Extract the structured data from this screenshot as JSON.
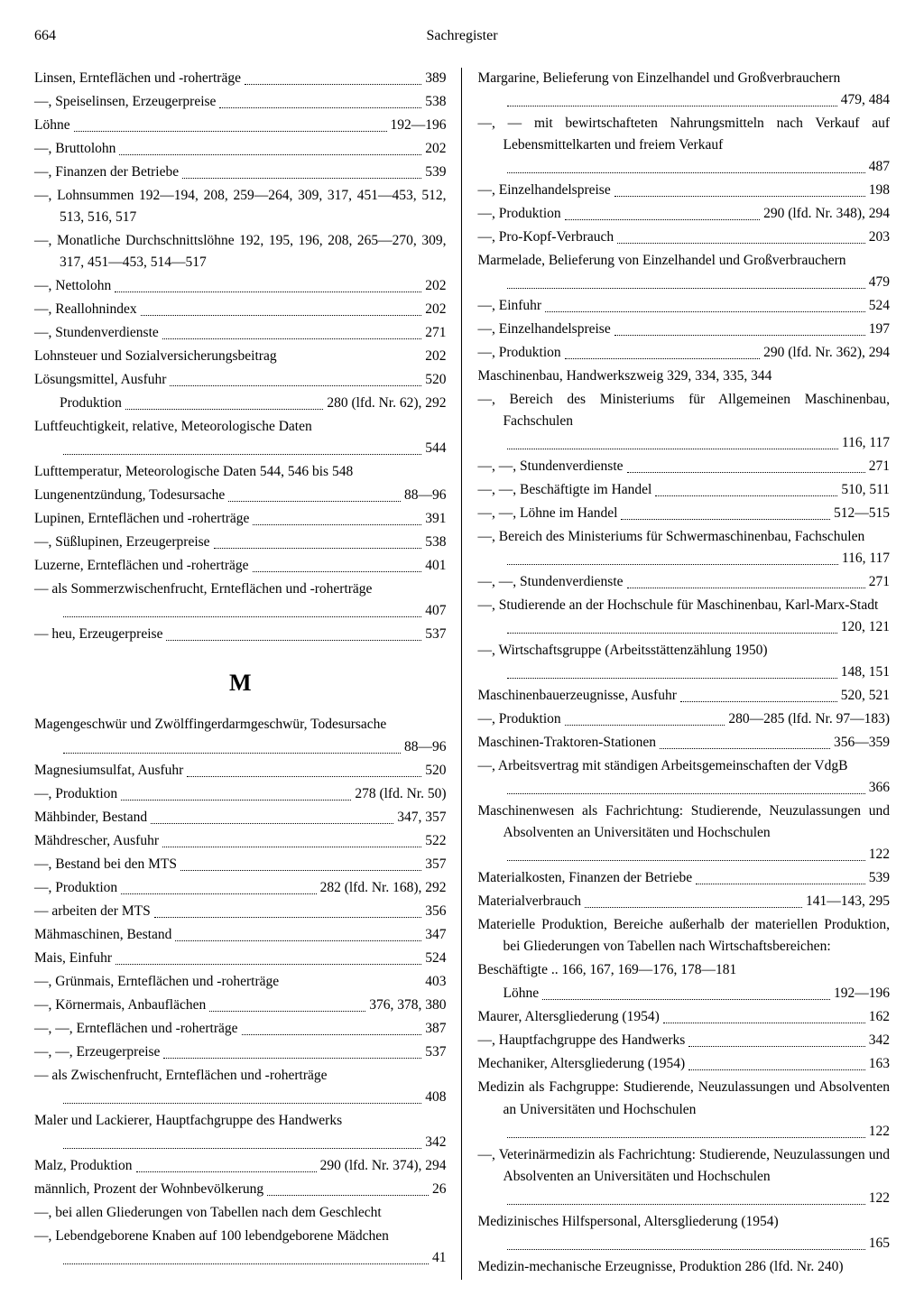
{
  "page_number": "664",
  "running_head": "Sachregister",
  "left_col": [
    {
      "t": "Linsen, Ernteflächen und -roherträge",
      "d": true,
      "p": "389"
    },
    {
      "t": "—, Speiselinsen, Erzeugerpreise",
      "d": true,
      "p": "538"
    },
    {
      "t": "Löhne",
      "d": true,
      "p": "192—196"
    },
    {
      "t": "—, Bruttolohn",
      "d": true,
      "p": "202"
    },
    {
      "t": "—, Finanzen der Betriebe",
      "d": true,
      "p": "539"
    },
    {
      "t": "—, Lohnsummen 192—194, 208, 259—264, 309, 317, 451—453, 512, 513, 516, 517",
      "full": true,
      "indent": 1
    },
    {
      "t": "—, Monatliche Durchschnittslöhne 192, 195, 196, 208, 265—270, 309, 317, 451—453, 514—517",
      "full": true,
      "indent": 1
    },
    {
      "t": "—, Nettolohn",
      "d": true,
      "p": "202"
    },
    {
      "t": "—, Reallohnindex",
      "d": true,
      "p": "202"
    },
    {
      "t": "—, Stundenverdienste",
      "d": true,
      "p": "271"
    },
    {
      "t": "Lohnsteuer und Sozialversicherungsbeitrag",
      "d": false,
      "p": "202"
    },
    {
      "t": "Lösungsmittel, Ausfuhr",
      "d": true,
      "p": "520"
    },
    {
      "t": "Produktion",
      "d": true,
      "p": "280 (lfd. Nr. 62), 292",
      "indent": 1
    },
    {
      "t": "Luftfeuchtigkeit, relative, Meteorologische Daten",
      "d": true,
      "p": "544",
      "wrap": true
    },
    {
      "t": "Lufttemperatur, Meteorologische Daten   544, 546 bis 548",
      "full": true,
      "indent": 1
    },
    {
      "t": "Lungenentzündung, Todesursache",
      "d": true,
      "p": "88—96"
    },
    {
      "t": "Lupinen, Ernteflächen und -roherträge",
      "d": true,
      "p": "391"
    },
    {
      "t": "—, Süßlupinen, Erzeugerpreise",
      "d": true,
      "p": "538"
    },
    {
      "t": "Luzerne, Ernteflächen und -roherträge",
      "d": true,
      "p": "401"
    },
    {
      "t": "— als Sommerzwischenfrucht, Ernteflächen und -roherträge",
      "d": true,
      "p": "407",
      "wrap": true
    },
    {
      "t": "— heu, Erzeugerpreise",
      "d": true,
      "p": "537"
    },
    {
      "section": "M"
    },
    {
      "t": "Magengeschwür und Zwölffingerdarmgeschwür, Todesursache",
      "d": true,
      "p": "88—96",
      "wrap": true
    },
    {
      "t": "Magnesiumsulfat, Ausfuhr",
      "d": true,
      "p": "520"
    },
    {
      "t": "—, Produktion",
      "d": true,
      "p": "278 (lfd. Nr. 50)"
    },
    {
      "t": "Mähbinder, Bestand",
      "d": true,
      "p": "347, 357"
    },
    {
      "t": "Mähdrescher, Ausfuhr",
      "d": true,
      "p": "522"
    },
    {
      "t": "—, Bestand bei den MTS",
      "d": true,
      "p": "357"
    },
    {
      "t": "—, Produktion",
      "d": true,
      "p": "282 (lfd. Nr. 168), 292"
    },
    {
      "t": "— arbeiten der MTS",
      "d": true,
      "p": "356"
    },
    {
      "t": "Mähmaschinen, Bestand",
      "d": true,
      "p": "347"
    },
    {
      "t": "Mais, Einfuhr",
      "d": true,
      "p": "524"
    },
    {
      "t": "—, Grünmais, Ernteflächen und -roherträge",
      "d": false,
      "p": "403"
    },
    {
      "t": "—, Körnermais, Anbauflächen",
      "d": true,
      "p": "376, 378, 380"
    },
    {
      "t": "—, —, Ernteflächen und -roherträge",
      "d": true,
      "p": "387"
    },
    {
      "t": "—, —, Erzeugerpreise",
      "d": true,
      "p": "537"
    },
    {
      "t": "— als Zwischenfrucht, Ernteflächen und -roherträge",
      "d": true,
      "p": "408",
      "wrap": true
    },
    {
      "t": "Maler und Lackierer, Hauptfachgruppe des Handwerks",
      "d": true,
      "p": "342",
      "wrap": true
    },
    {
      "t": "Malz, Produktion",
      "d": true,
      "p": "290 (lfd. Nr. 374), 294"
    },
    {
      "t": "männlich, Prozent der Wohnbevölkerung",
      "d": true,
      "p": "26"
    },
    {
      "t": "—, bei allen Gliederungen von Tabellen nach dem Geschlecht",
      "full": true,
      "indent": 1
    },
    {
      "t": "—, Lebendgeborene Knaben auf 100 lebendgeborene Mädchen",
      "d": true,
      "p": "41",
      "wrap": true
    }
  ],
  "right_col": [
    {
      "t": "Margarine, Belieferung von Einzelhandel und Großverbrauchern",
      "d": true,
      "p": "479, 484",
      "wrap": true
    },
    {
      "t": "—, — mit bewirtschafteten Nahrungsmitteln nach Verkauf auf Lebensmittelkarten und freiem Verkauf",
      "d": true,
      "p": "487",
      "wrap": true
    },
    {
      "t": "—, Einzelhandelspreise",
      "d": true,
      "p": "198"
    },
    {
      "t": "—, Produktion",
      "d": true,
      "p": "290 (lfd. Nr. 348), 294"
    },
    {
      "t": "—, Pro-Kopf-Verbrauch",
      "d": true,
      "p": "203"
    },
    {
      "t": "Marmelade, Belieferung von Einzelhandel und Großverbrauchern",
      "d": true,
      "p": "479",
      "wrap": true
    },
    {
      "t": "—, Einfuhr",
      "d": true,
      "p": "524"
    },
    {
      "t": "—, Einzelhandelspreise",
      "d": true,
      "p": "197"
    },
    {
      "t": "—, Produktion",
      "d": true,
      "p": "290 (lfd. Nr. 362), 294"
    },
    {
      "t": "Maschinenbau, Handwerkszweig 329, 334, 335, 344",
      "full": true
    },
    {
      "t": "—, Bereich des Ministeriums für Allgemeinen Maschinenbau, Fachschulen",
      "d": true,
      "p": "116, 117",
      "wrap": true
    },
    {
      "t": "—, —, Stundenverdienste",
      "d": true,
      "p": "271"
    },
    {
      "t": "—, —, Beschäftigte im Handel",
      "d": true,
      "p": "510, 511"
    },
    {
      "t": "—, —, Löhne im Handel",
      "d": true,
      "p": "512—515"
    },
    {
      "t": "—, Bereich des Ministeriums für Schwermaschinenbau, Fachschulen",
      "d": true,
      "p": "116, 117",
      "wrap": true
    },
    {
      "t": "—, —, Stundenverdienste",
      "d": true,
      "p": "271"
    },
    {
      "t": "—, Studierende an der Hochschule für Maschinenbau, Karl-Marx-Stadt",
      "d": true,
      "p": "120, 121",
      "wrap": true
    },
    {
      "t": "—, Wirtschaftsgruppe (Arbeitsstättenzählung 1950)",
      "d": true,
      "p": "148, 151",
      "wrap": true
    },
    {
      "t": "Maschinenbauerzeugnisse, Ausfuhr",
      "d": true,
      "p": "520, 521"
    },
    {
      "t": "—, Produktion",
      "d": true,
      "p": "280—285 (lfd. Nr. 97—183)"
    },
    {
      "t": "Maschinen-Traktoren-Stationen",
      "d": true,
      "p": "356—359"
    },
    {
      "t": "—, Arbeitsvertrag mit ständigen Arbeitsgemeinschaften der VdgB",
      "d": true,
      "p": "366",
      "wrap": true
    },
    {
      "t": "Maschinenwesen als Fachrichtung: Studierende, Neuzulassungen und Absolventen an Universitäten und Hochschulen",
      "d": true,
      "p": "122",
      "wrap": true
    },
    {
      "t": "Materialkosten, Finanzen der Betriebe",
      "d": true,
      "p": "539"
    },
    {
      "t": "Materialverbrauch",
      "d": true,
      "p": "141—143, 295"
    },
    {
      "t": "Materielle Produktion, Bereiche außerhalb der materiellen Produktion, bei Gliederungen von Tabellen nach Wirtschaftsbereichen:",
      "full": true,
      "indent": 1,
      "just": true
    },
    {
      "t": "Beschäftigte .. 166, 167, 169—176, 178—181",
      "full": true,
      "indent": 1
    },
    {
      "t": "Löhne",
      "d": true,
      "p": "192—196",
      "indent": 1
    },
    {
      "t": "Maurer, Altersgliederung (1954)",
      "d": true,
      "p": "162"
    },
    {
      "t": "—, Hauptfachgruppe des Handwerks",
      "d": true,
      "p": "342"
    },
    {
      "t": "Mechaniker, Altersgliederung (1954)",
      "d": true,
      "p": "163"
    },
    {
      "t": "Medizin als Fachgruppe: Studierende, Neuzulassungen und Absolventen an Universitäten und Hochschulen",
      "d": true,
      "p": "122",
      "wrap": true
    },
    {
      "t": "—, Veterinärmedizin als Fachrichtung: Studierende, Neuzulassungen und Absolventen an Universitäten und Hochschulen",
      "d": true,
      "p": "122",
      "wrap": true
    },
    {
      "t": "Medizinisches Hilfspersonal, Altersgliederung (1954)",
      "d": true,
      "p": "165",
      "wrap": true
    },
    {
      "t": "Medizin-mechanische Erzeugnisse, Produktion 286 (lfd. Nr. 240)",
      "full": true,
      "indent": 1
    }
  ]
}
